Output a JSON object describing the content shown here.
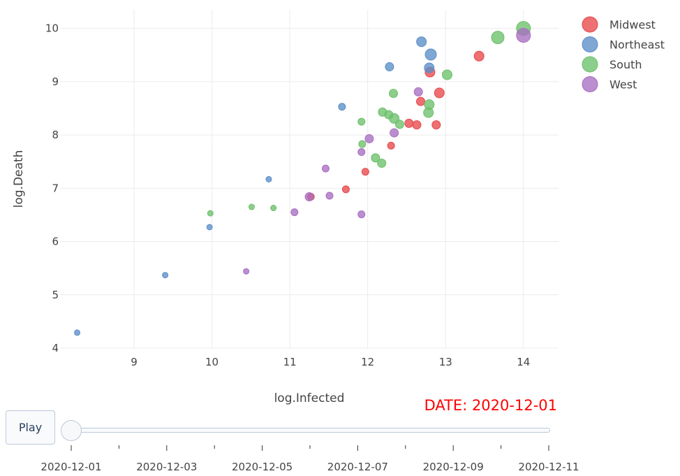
{
  "chart_data": {
    "type": "scatter",
    "xlabel": "log.Infected",
    "ylabel": "log.Death",
    "xlim": [
      8.05,
      14.45
    ],
    "ylim": [
      4.0,
      10.35
    ],
    "x_ticks": [
      9,
      10,
      11,
      12,
      13,
      14
    ],
    "y_ticks": [
      4,
      5,
      6,
      7,
      8,
      9,
      10
    ],
    "grid": true,
    "legend_position": "top-right",
    "series": [
      {
        "name": "Midwest",
        "color": "#e8484a",
        "points": [
          {
            "x": 11.27,
            "y": 6.84,
            "size": 5
          },
          {
            "x": 11.72,
            "y": 6.98,
            "size": 5
          },
          {
            "x": 11.97,
            "y": 7.31,
            "size": 5
          },
          {
            "x": 12.3,
            "y": 7.8,
            "size": 5
          },
          {
            "x": 12.53,
            "y": 8.22,
            "size": 6
          },
          {
            "x": 12.63,
            "y": 8.19,
            "size": 6
          },
          {
            "x": 12.88,
            "y": 8.19,
            "size": 6
          },
          {
            "x": 12.68,
            "y": 8.63,
            "size": 6
          },
          {
            "x": 12.92,
            "y": 8.79,
            "size": 7
          },
          {
            "x": 12.8,
            "y": 9.18,
            "size": 7
          },
          {
            "x": 13.43,
            "y": 9.48,
            "size": 7
          }
        ]
      },
      {
        "name": "Northeast",
        "color": "#5b8ec7",
        "points": [
          {
            "x": 8.27,
            "y": 4.29,
            "size": 4
          },
          {
            "x": 9.4,
            "y": 5.37,
            "size": 4
          },
          {
            "x": 9.97,
            "y": 6.27,
            "size": 4
          },
          {
            "x": 10.73,
            "y": 7.17,
            "size": 4
          },
          {
            "x": 11.67,
            "y": 8.53,
            "size": 5
          },
          {
            "x": 12.28,
            "y": 9.28,
            "size": 6
          },
          {
            "x": 12.79,
            "y": 9.26,
            "size": 7
          },
          {
            "x": 12.81,
            "y": 9.51,
            "size": 8
          },
          {
            "x": 12.69,
            "y": 9.75,
            "size": 7
          }
        ]
      },
      {
        "name": "South",
        "color": "#6cc06a",
        "points": [
          {
            "x": 9.98,
            "y": 6.53,
            "size": 4
          },
          {
            "x": 10.51,
            "y": 6.65,
            "size": 4
          },
          {
            "x": 10.79,
            "y": 6.63,
            "size": 4
          },
          {
            "x": 11.93,
            "y": 7.83,
            "size": 5
          },
          {
            "x": 12.1,
            "y": 7.57,
            "size": 6
          },
          {
            "x": 12.18,
            "y": 7.47,
            "size": 6
          },
          {
            "x": 11.92,
            "y": 8.25,
            "size": 5
          },
          {
            "x": 12.19,
            "y": 8.43,
            "size": 6
          },
          {
            "x": 12.27,
            "y": 8.38,
            "size": 6
          },
          {
            "x": 12.34,
            "y": 8.31,
            "size": 7
          },
          {
            "x": 12.41,
            "y": 8.2,
            "size": 6
          },
          {
            "x": 12.78,
            "y": 8.42,
            "size": 7
          },
          {
            "x": 12.79,
            "y": 8.57,
            "size": 7
          },
          {
            "x": 12.33,
            "y": 8.78,
            "size": 6
          },
          {
            "x": 13.02,
            "y": 9.13,
            "size": 7
          },
          {
            "x": 13.67,
            "y": 9.83,
            "size": 9
          },
          {
            "x": 14.0,
            "y": 10.0,
            "size": 10
          }
        ]
      },
      {
        "name": "West",
        "color": "#a86ec1",
        "points": [
          {
            "x": 10.44,
            "y": 5.44,
            "size": 4
          },
          {
            "x": 11.06,
            "y": 6.55,
            "size": 5
          },
          {
            "x": 11.25,
            "y": 6.84,
            "size": 6
          },
          {
            "x": 11.51,
            "y": 6.86,
            "size": 5
          },
          {
            "x": 11.46,
            "y": 7.37,
            "size": 5
          },
          {
            "x": 11.92,
            "y": 6.51,
            "size": 5
          },
          {
            "x": 11.92,
            "y": 7.68,
            "size": 5
          },
          {
            "x": 12.02,
            "y": 7.93,
            "size": 6
          },
          {
            "x": 12.34,
            "y": 8.04,
            "size": 6
          },
          {
            "x": 12.65,
            "y": 8.81,
            "size": 6
          },
          {
            "x": 14.0,
            "y": 9.87,
            "size": 10
          }
        ]
      }
    ],
    "annotation": "DATE: 2020-12-01"
  },
  "controls": {
    "play_label": "Play",
    "slider_value_index": 0,
    "slider_steps": 11,
    "slider_labels": [
      "2020-12-01",
      "2020-12-03",
      "2020-12-05",
      "2020-12-07",
      "2020-12-09",
      "2020-12-11"
    ]
  }
}
